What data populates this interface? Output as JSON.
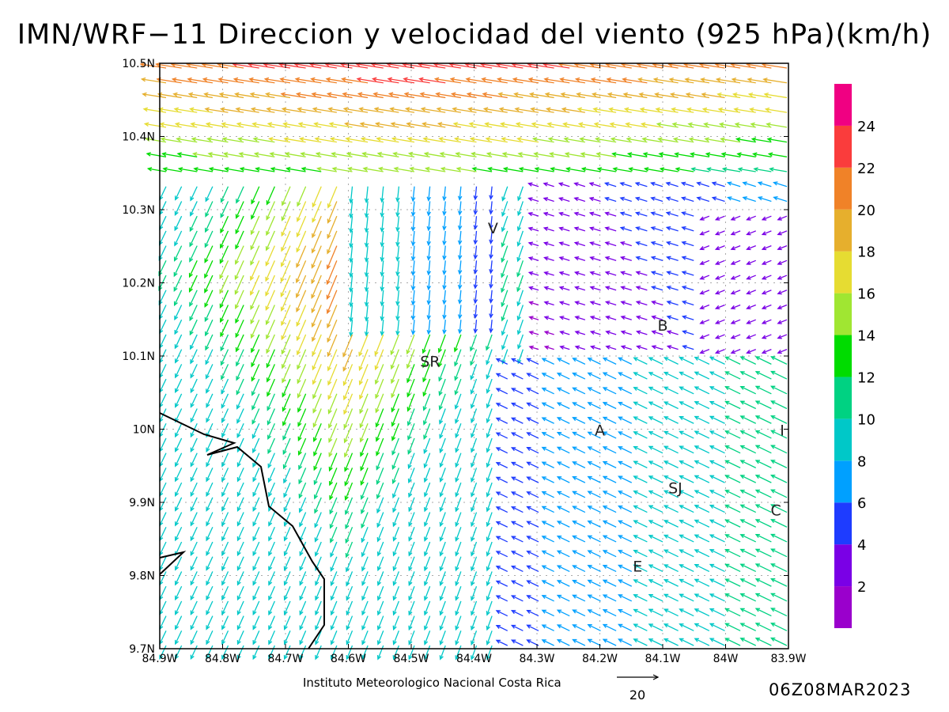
{
  "title": "IMN/WRF−11 Direccion y velocidad del viento (925 hPa)(km/h)",
  "credit": "Instituto Meteorologico Nacional Costa Rica",
  "valid_time": "06Z08MAR2023",
  "reference_vector": {
    "label": "20",
    "speed": 20
  },
  "axes": {
    "lon_range": [
      -84.9,
      -83.9
    ],
    "lat_range": [
      9.7,
      10.5
    ],
    "x_ticks": [
      {
        "value": -84.9,
        "label": "84.9W"
      },
      {
        "value": -84.8,
        "label": "84.8W"
      },
      {
        "value": -84.7,
        "label": "84.7W"
      },
      {
        "value": -84.6,
        "label": "84.6W"
      },
      {
        "value": -84.5,
        "label": "84.5W"
      },
      {
        "value": -84.4,
        "label": "84.4W"
      },
      {
        "value": -84.3,
        "label": "84.3W"
      },
      {
        "value": -84.2,
        "label": "84.2W"
      },
      {
        "value": -84.1,
        "label": "84.1W"
      },
      {
        "value": -84.0,
        "label": "84W"
      },
      {
        "value": -83.9,
        "label": "83.9W"
      }
    ],
    "y_ticks": [
      {
        "value": 9.7,
        "label": "9.7N"
      },
      {
        "value": 9.8,
        "label": "9.8N"
      },
      {
        "value": 9.9,
        "label": "9.9N"
      },
      {
        "value": 10.0,
        "label": "10N"
      },
      {
        "value": 10.1,
        "label": "10.1N"
      },
      {
        "value": 10.2,
        "label": "10.2N"
      },
      {
        "value": 10.3,
        "label": "10.3N"
      },
      {
        "value": 10.4,
        "label": "10.4N"
      },
      {
        "value": 10.5,
        "label": "10.5N"
      }
    ],
    "grid": true
  },
  "city_labels": [
    {
      "text": "V",
      "lon": -84.37,
      "lat": 10.275
    },
    {
      "text": "SR",
      "lon": -84.47,
      "lat": 10.093
    },
    {
      "text": "B",
      "lon": -84.1,
      "lat": 10.142
    },
    {
      "text": "A",
      "lon": -84.2,
      "lat": 9.999
    },
    {
      "text": "I",
      "lon": -83.91,
      "lat": 9.999
    },
    {
      "text": "SJ",
      "lon": -84.08,
      "lat": 9.92
    },
    {
      "text": "C",
      "lon": -83.92,
      "lat": 9.89
    },
    {
      "text": "E",
      "lon": -84.14,
      "lat": 9.813
    }
  ],
  "colorbar": {
    "levels": [
      {
        "label": "",
        "color": "#9a00cc"
      },
      {
        "label": "2",
        "color": "#7a00e6"
      },
      {
        "label": "4",
        "color": "#1e3cff"
      },
      {
        "label": "6",
        "color": "#00a0ff"
      },
      {
        "label": "8",
        "color": "#00c8c8"
      },
      {
        "label": "10",
        "color": "#00d282"
      },
      {
        "label": "12",
        "color": "#00dc00"
      },
      {
        "label": "14",
        "color": "#a0e632"
      },
      {
        "label": "16",
        "color": "#e6dc32"
      },
      {
        "label": "18",
        "color": "#e6af2d"
      },
      {
        "label": "20",
        "color": "#f08228"
      },
      {
        "label": "22",
        "color": "#fa3c3c"
      },
      {
        "label": "24",
        "color": "#f00082"
      }
    ]
  },
  "coastline_color": "#000000",
  "grid_color": "#aaaaaa"
}
